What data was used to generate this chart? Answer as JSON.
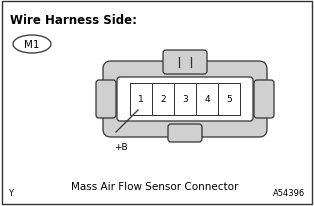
{
  "title": "Wire Harness Side:",
  "label_m1": "M1",
  "connector_label": "Mass Air Flow Sensor Connector",
  "pin_labels": [
    "1",
    "2",
    "3",
    "4",
    "5"
  ],
  "plus_b_label": "+B",
  "code_label": "A54396",
  "y_label": "Y",
  "bg_color": "#ffffff",
  "line_color": "#333333",
  "text_color": "#000000",
  "gray_fill": "#d0d0d0",
  "white_fill": "#ffffff",
  "title_fontsize": 8.5,
  "pin_fontsize": 6.5,
  "small_fontsize": 6,
  "body_fontsize": 7.5
}
